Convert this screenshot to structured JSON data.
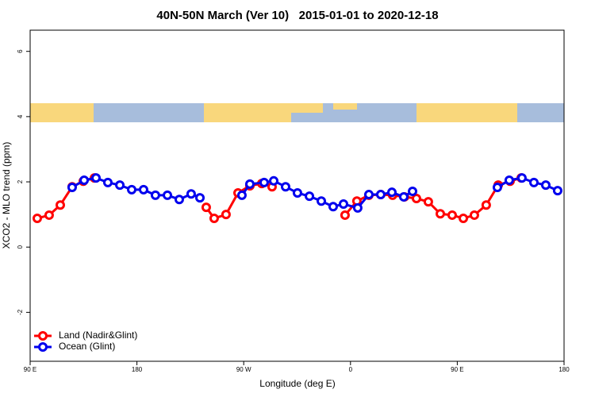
{
  "chart_data": {
    "type": "line",
    "title": "40N-50N March (Ver 10)   2015-01-01 to 2020-12-18",
    "xlabel": "Longitude (deg E)",
    "ylabel": "XCO2 - MLO trend (ppm)",
    "xlim": [
      90,
      540
    ],
    "ylim": [
      -3.5,
      6.65
    ],
    "xticks": [
      {
        "value": 90,
        "label": "90 E"
      },
      180,
      {
        "value": 270,
        "label": "90 W"
      },
      {
        "value": 360,
        "label": "0"
      },
      {
        "value": 450,
        "label": "90 E"
      },
      {
        "value": 540,
        "label": "180"
      }
    ],
    "yticks": [
      -2,
      0,
      2,
      4,
      6
    ],
    "legend": "bottom-left",
    "series": [
      {
        "name": "Land (Nadir&Glint)",
        "color": "#ff0000",
        "x": [
          96.0,
          106.0,
          115.4,
          125.4,
          134.8,
          144.2,
          null,
          238.4,
          245.1,
          255.1,
          265.2,
          275.2,
          285.2,
          293.9,
          null,
          355.4,
          365.4,
          375.5,
          385.5,
          395.5,
          405.5,
          415.6,
          425.6,
          435.7,
          445.7,
          455.1,
          464.4,
          474.4,
          484.5,
          494.5,
          503.9
        ],
        "values": [
          0.88,
          0.98,
          1.29,
          1.85,
          2.02,
          2.12,
          null,
          1.22,
          0.88,
          1.0,
          1.66,
          1.88,
          1.95,
          1.85,
          null,
          0.98,
          1.41,
          1.59,
          1.61,
          1.59,
          1.54,
          1.49,
          1.39,
          1.02,
          0.98,
          0.88,
          0.98,
          1.29,
          1.9,
          2.02,
          2.12
        ]
      },
      {
        "name": "Ocean (Glint)",
        "color": "#0000ee",
        "x": [
          125.4,
          135.5,
          145.5,
          155.5,
          165.6,
          175.6,
          185.6,
          195.6,
          205.7,
          215.7,
          225.7,
          233.1,
          null,
          268.5,
          275.2,
          287.2,
          295.3,
          305.3,
          315.3,
          325.4,
          335.4,
          345.4,
          354.1,
          366.1,
          375.5,
          385.5,
          394.9,
          404.9,
          412.3,
          null,
          483.8,
          493.8,
          504.5,
          514.6,
          524.6,
          534.6
        ],
        "values": [
          1.83,
          2.05,
          2.12,
          1.98,
          1.9,
          1.76,
          1.76,
          1.59,
          1.59,
          1.46,
          1.63,
          1.51,
          null,
          1.59,
          1.93,
          1.98,
          2.03,
          1.85,
          1.66,
          1.56,
          1.41,
          1.24,
          1.32,
          1.2,
          1.61,
          1.61,
          1.68,
          1.54,
          1.71,
          null,
          1.83,
          2.05,
          2.12,
          1.98,
          1.9,
          1.73
        ]
      }
    ]
  }
}
